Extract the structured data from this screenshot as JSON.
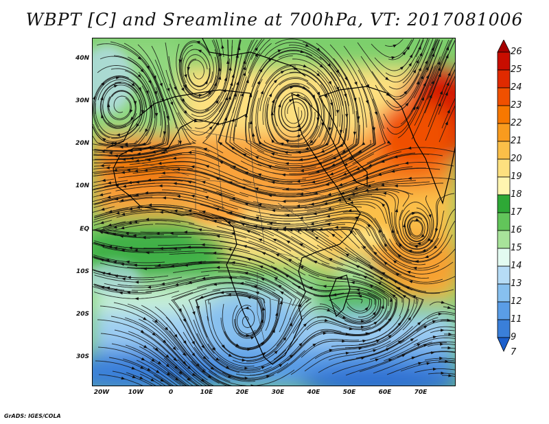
{
  "title": "WBPT [C] and Sreamline at 700hPa, VT: 2017081006",
  "footer": "GrADS: IGES/COLA",
  "map": {
    "field": "WBPT",
    "units": "C",
    "level": "700hPa",
    "valid_time": "2017081006",
    "lat_range": [
      -36,
      45
    ],
    "lon_range": [
      -22,
      80
    ],
    "lat_labels": [
      "40N",
      "30N",
      "20N",
      "10N",
      "EQ",
      "10S",
      "20S",
      "30S"
    ],
    "lon_labels": [
      "20W",
      "10W",
      "0",
      "10E",
      "20E",
      "30E",
      "40E",
      "50E",
      "60E",
      "70E"
    ]
  },
  "colorbar": {
    "labels": [
      "26",
      "25",
      "24",
      "23",
      "22",
      "21",
      "20",
      "19",
      "18",
      "17",
      "16",
      "15",
      "14",
      "13",
      "12",
      "11",
      "9",
      "7"
    ],
    "colors": [
      "#a50000",
      "#c80d00",
      "#e02a00",
      "#f05000",
      "#f77800",
      "#f99b1e",
      "#fbbf48",
      "#fde07f",
      "#fff5b0",
      "#2ea836",
      "#62c55a",
      "#a8e39a",
      "#e3fbf1",
      "#b6dcf6",
      "#87c0ef",
      "#5a9de6",
      "#3a7fd9",
      "#1b5fcc"
    ]
  }
}
